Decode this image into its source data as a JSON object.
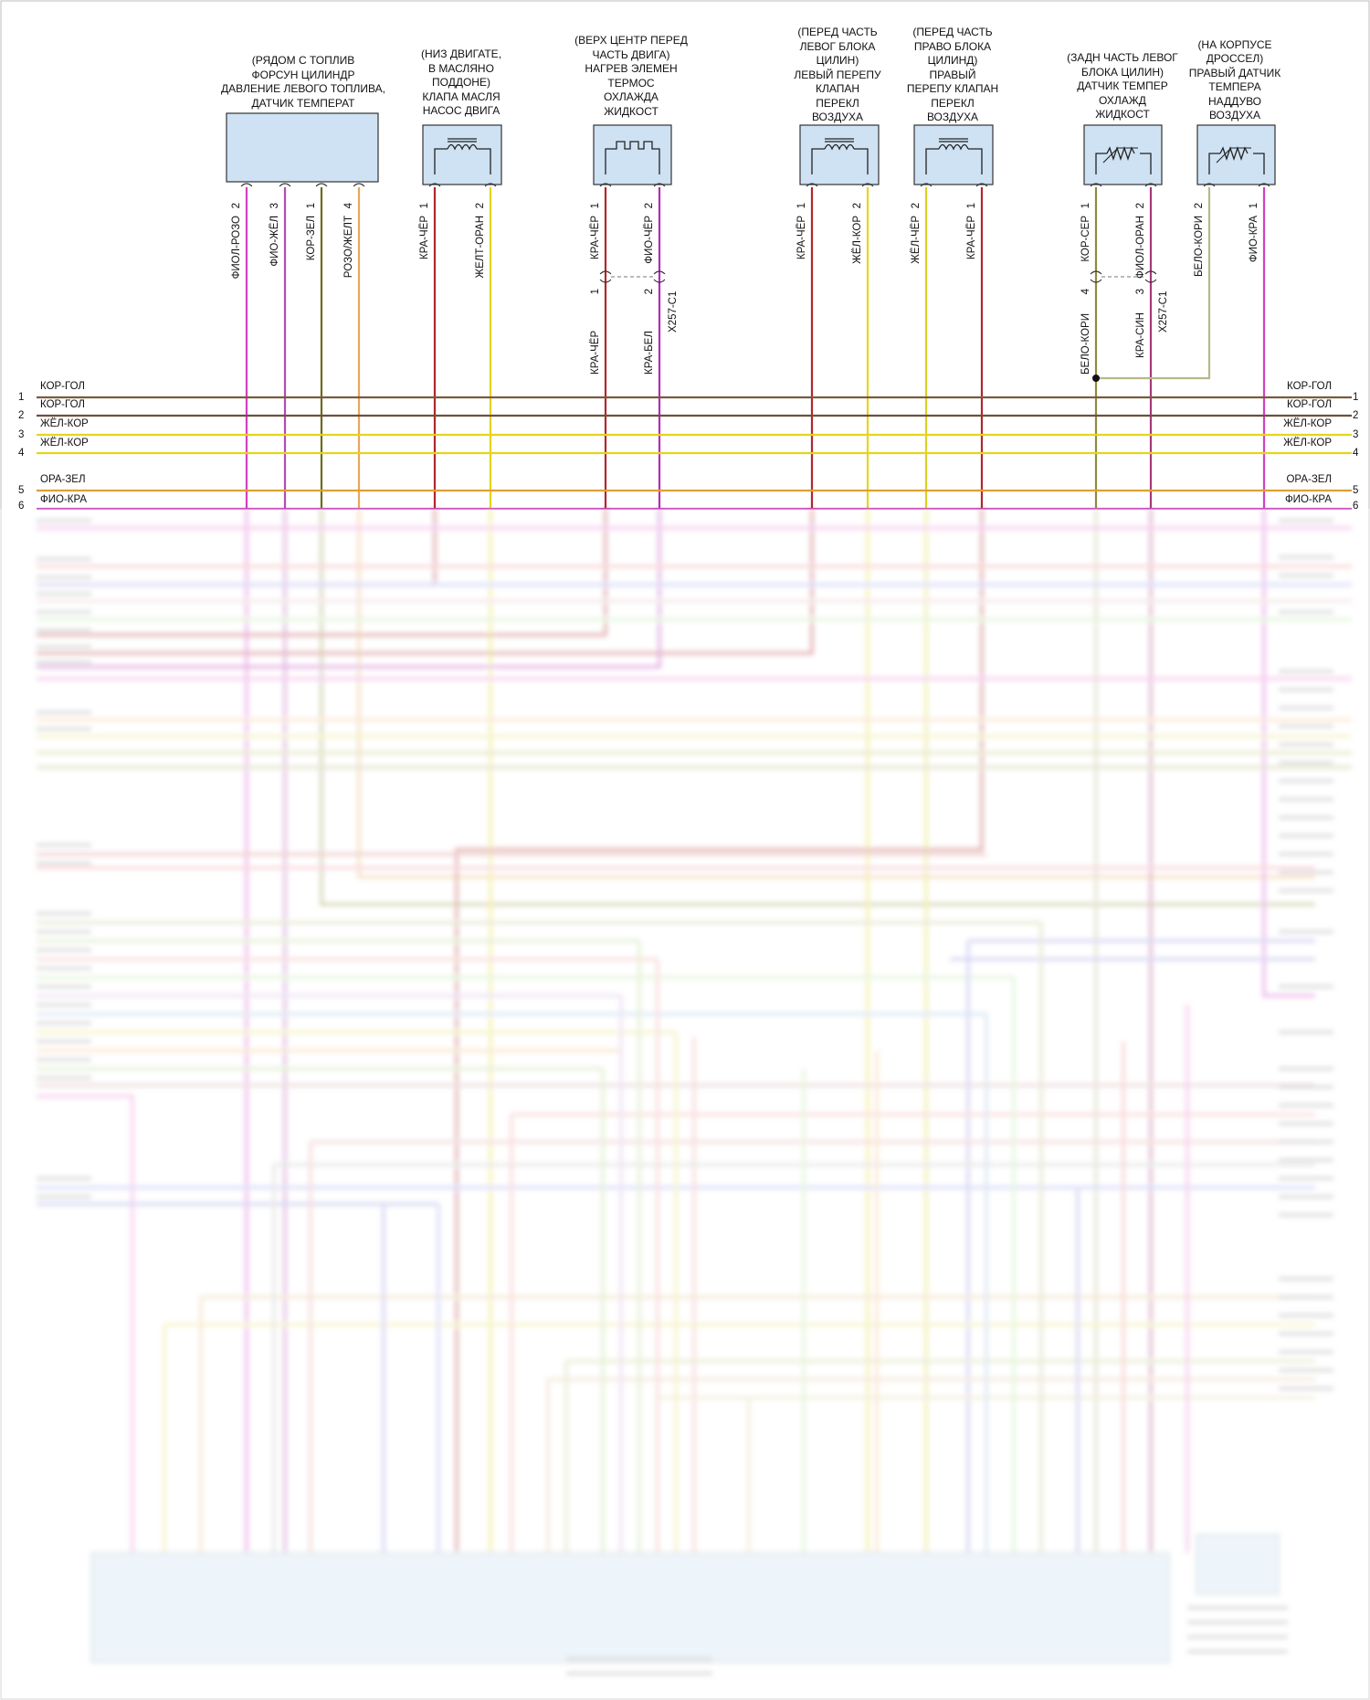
{
  "components": [
    {
      "id": "fuel",
      "caption": [
        "(РЯДОМ С ТОПЛИВ",
        "ФОРСУН ЦИЛИНДР",
        "ДАВЛЕНИЕ ЛЕВОГО ТОПЛИВА,",
        "ДАТЧИК ТЕМПЕРАТ"
      ],
      "symbol": "none",
      "pins": [
        {
          "num": "2",
          "wire": "ФИОЛ-РОЗО",
          "color": "#d23fc4"
        },
        {
          "num": "3",
          "wire": "ФИО-ЖЁЛ",
          "color": "#b44ab0"
        },
        {
          "num": "1",
          "wire": "КОР-ЗЕЛ",
          "color": "#6b6a1e"
        },
        {
          "num": "4",
          "wire": "РОЗО/ЖЕЛТ",
          "color": "#e8a65a"
        }
      ]
    },
    {
      "id": "oilpump",
      "caption": [
        "(НИЗ ДВИГАТЕ,",
        "В МАСЛЯНО",
        "ПОДДОНЕ)",
        "КЛАПА МАСЛЯ",
        "НАСОС ДВИГА"
      ],
      "symbol": "coil",
      "pins": [
        {
          "num": "1",
          "wire": "КРА-ЧЁР",
          "color": "#b2262b"
        },
        {
          "num": "2",
          "wire": "ЖЕЛТ-ОРАН",
          "color": "#e6d41c"
        }
      ]
    },
    {
      "id": "heater",
      "caption": [
        "(ВЕРХ ЦЕНТР ПЕРЕД",
        "ЧАСТЬ ДВИГА)",
        "НАГРЕВ ЭЛЕМЕН",
        "ТЕРМОС",
        "ОХЛАЖДА",
        "ЖИДКОСТ"
      ],
      "symbol": "heater",
      "pins": [
        {
          "num": "1",
          "wire": "КРА-ЧЁР",
          "color": "#b2262b"
        },
        {
          "num": "2",
          "wire": "ФИО-ЧЁР",
          "color": "#b42bb5"
        }
      ],
      "connector": "X257-C1",
      "lower_pins": [
        {
          "num": "1",
          "wire": "КРА-ЧЁР"
        },
        {
          "num": "2",
          "wire": "КРА-БЕЛ"
        }
      ]
    },
    {
      "id": "leftbypass",
      "caption": [
        "(ПЕРЕД ЧАСТЬ",
        "ЛЕВОГ БЛОКА",
        "ЦИЛИН)",
        "ЛЕВЫЙ ПЕРЕПУ",
        "КЛАПАН",
        "ПЕРЕКЛ",
        "ВОЗДУХА"
      ],
      "symbol": "coil",
      "pins": [
        {
          "num": "1",
          "wire": "КРА-ЧЁР",
          "color": "#b2262b"
        },
        {
          "num": "2",
          "wire": "ЖЁЛ-КОР",
          "color": "#e6d41c"
        }
      ]
    },
    {
      "id": "rightbypass",
      "caption": [
        "(ПЕРЕД ЧАСТЬ",
        "ПРАВО БЛОКА",
        "ЦИЛИНД)",
        "ПРАВЫЙ",
        "ПЕРЕПУ КЛАПАН",
        "ПЕРЕКЛ",
        "ВОЗДУХА"
      ],
      "symbol": "coil",
      "pins": [
        {
          "num": "2",
          "wire": "ЖЁЛ-ЧЁР",
          "color": "#d8d324"
        },
        {
          "num": "1",
          "wire": "КРА-ЧЁР",
          "color": "#b2262b"
        }
      ]
    },
    {
      "id": "coolanttemp",
      "caption": [
        "(ЗАДН ЧАСТЬ ЛЕВОГ",
        "БЛОКА ЦИЛИН)",
        "ДАТЧИК ТЕМПЕР",
        "ОХЛАЖД",
        "ЖИДКОСТ"
      ],
      "symbol": "thermistor",
      "pins": [
        {
          "num": "1",
          "wire": "КОР-СЕР",
          "color": "#8f8a3e"
        },
        {
          "num": "2",
          "wire": "ФИОЛ-ОРАН",
          "color": "#a63877"
        }
      ],
      "connector": "X257-C1",
      "lower_pins": [
        {
          "num": "4",
          "wire": "БЕЛО-КОРИ"
        },
        {
          "num": "3",
          "wire": "КРА-СИН"
        }
      ]
    },
    {
      "id": "boosttemp",
      "caption": [
        "(НА КОРПУСЕ",
        "ДРОССЕЛ)",
        "ПРАВЫЙ ДАТЧИК",
        "ТЕМПЕРА",
        "НАДДУВО",
        "ВОЗДУХА"
      ],
      "symbol": "thermistor",
      "pins": [
        {
          "num": "2",
          "wire": "БЕЛО-КОРИ",
          "color": "#b7b88a"
        },
        {
          "num": "1",
          "wire": "ФИО-КРА",
          "color": "#d23fc4"
        }
      ]
    }
  ],
  "bus_left": [
    {
      "num": "1",
      "label": "КОР-ГОЛ",
      "color": "#7a5a3c"
    },
    {
      "num": "2",
      "label": "КОР-ГОЛ",
      "color": "#6f4f3a"
    },
    {
      "num": "3",
      "label": "ЖЁЛ-КОР",
      "color": "#e6d41c"
    },
    {
      "num": "4",
      "label": "ЖЁЛ-КОР",
      "color": "#e6d41c"
    },
    {
      "num": "5",
      "label": "ОРА-ЗЕЛ",
      "color": "#e0a030"
    },
    {
      "num": "6",
      "label": "ФИО-КРА",
      "color": "#c94fc0"
    }
  ],
  "bus_right": [
    {
      "num": "1",
      "label": "КОР-ГОЛ"
    },
    {
      "num": "2",
      "label": "КОР-ГОЛ"
    },
    {
      "num": "3",
      "label": "ЖЁЛ-КОР"
    },
    {
      "num": "4",
      "label": "ЖЁЛ-КОР"
    },
    {
      "num": "5",
      "label": "ОРА-ЗЕЛ"
    },
    {
      "num": "6",
      "label": "ФИО-КРА"
    }
  ]
}
